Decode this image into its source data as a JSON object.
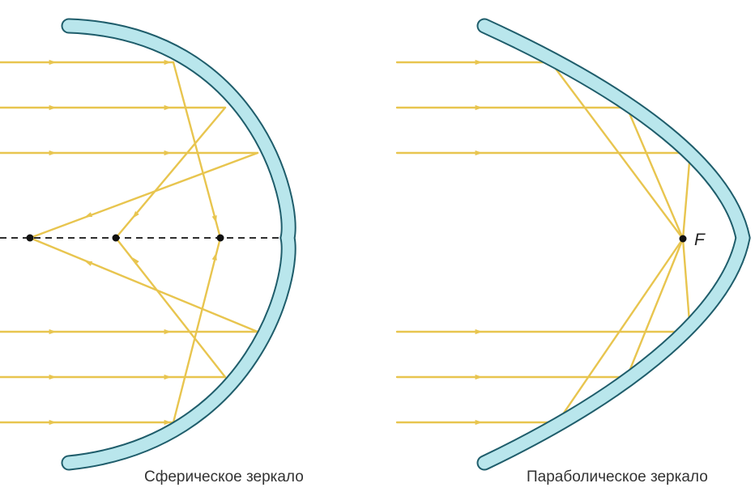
{
  "figures": [
    {
      "caption": "Сферическое зеркало"
    },
    {
      "caption": "Параболическое зеркало",
      "focus_label": "F"
    }
  ],
  "colors": {
    "mirror_fill": "#b9e6ec",
    "mirror_stroke": "#1f5d6b",
    "ray": "#e8c54f",
    "axis": "#111111"
  }
}
